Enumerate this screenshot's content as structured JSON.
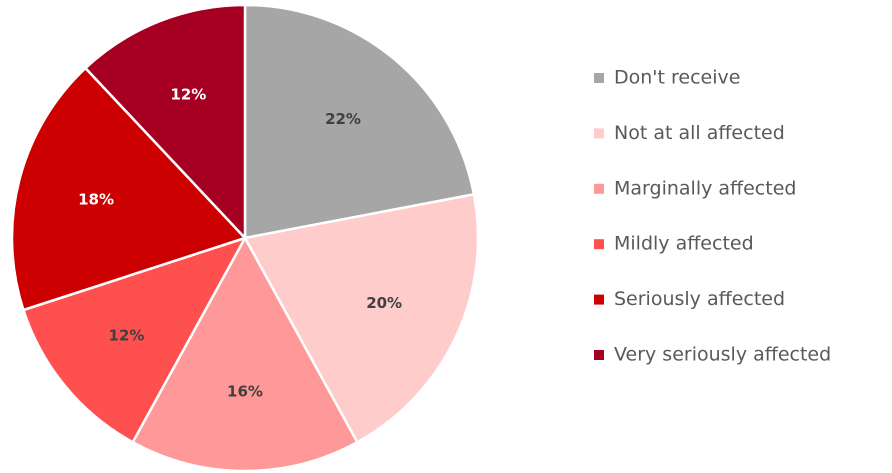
{
  "chart_data": {
    "type": "pie",
    "categories": [
      "Don't receive",
      "Not at all affected",
      "Marginally affected",
      "Mildly affected",
      "Seriously affected",
      "Very seriously affected"
    ],
    "values": [
      22,
      20,
      16,
      12,
      18,
      12
    ],
    "value_labels": [
      "22%",
      "20%",
      "16%",
      "12%",
      "18%",
      "12%"
    ],
    "colors": [
      "#a6a6a6",
      "#ffcccc",
      "#ff9999",
      "#ff5050",
      "#cc0000",
      "#a50021"
    ],
    "label_colors": [
      "#404040",
      "#404040",
      "#404040",
      "#404040",
      "#ffffff",
      "#ffffff"
    ],
    "legend": "right"
  }
}
